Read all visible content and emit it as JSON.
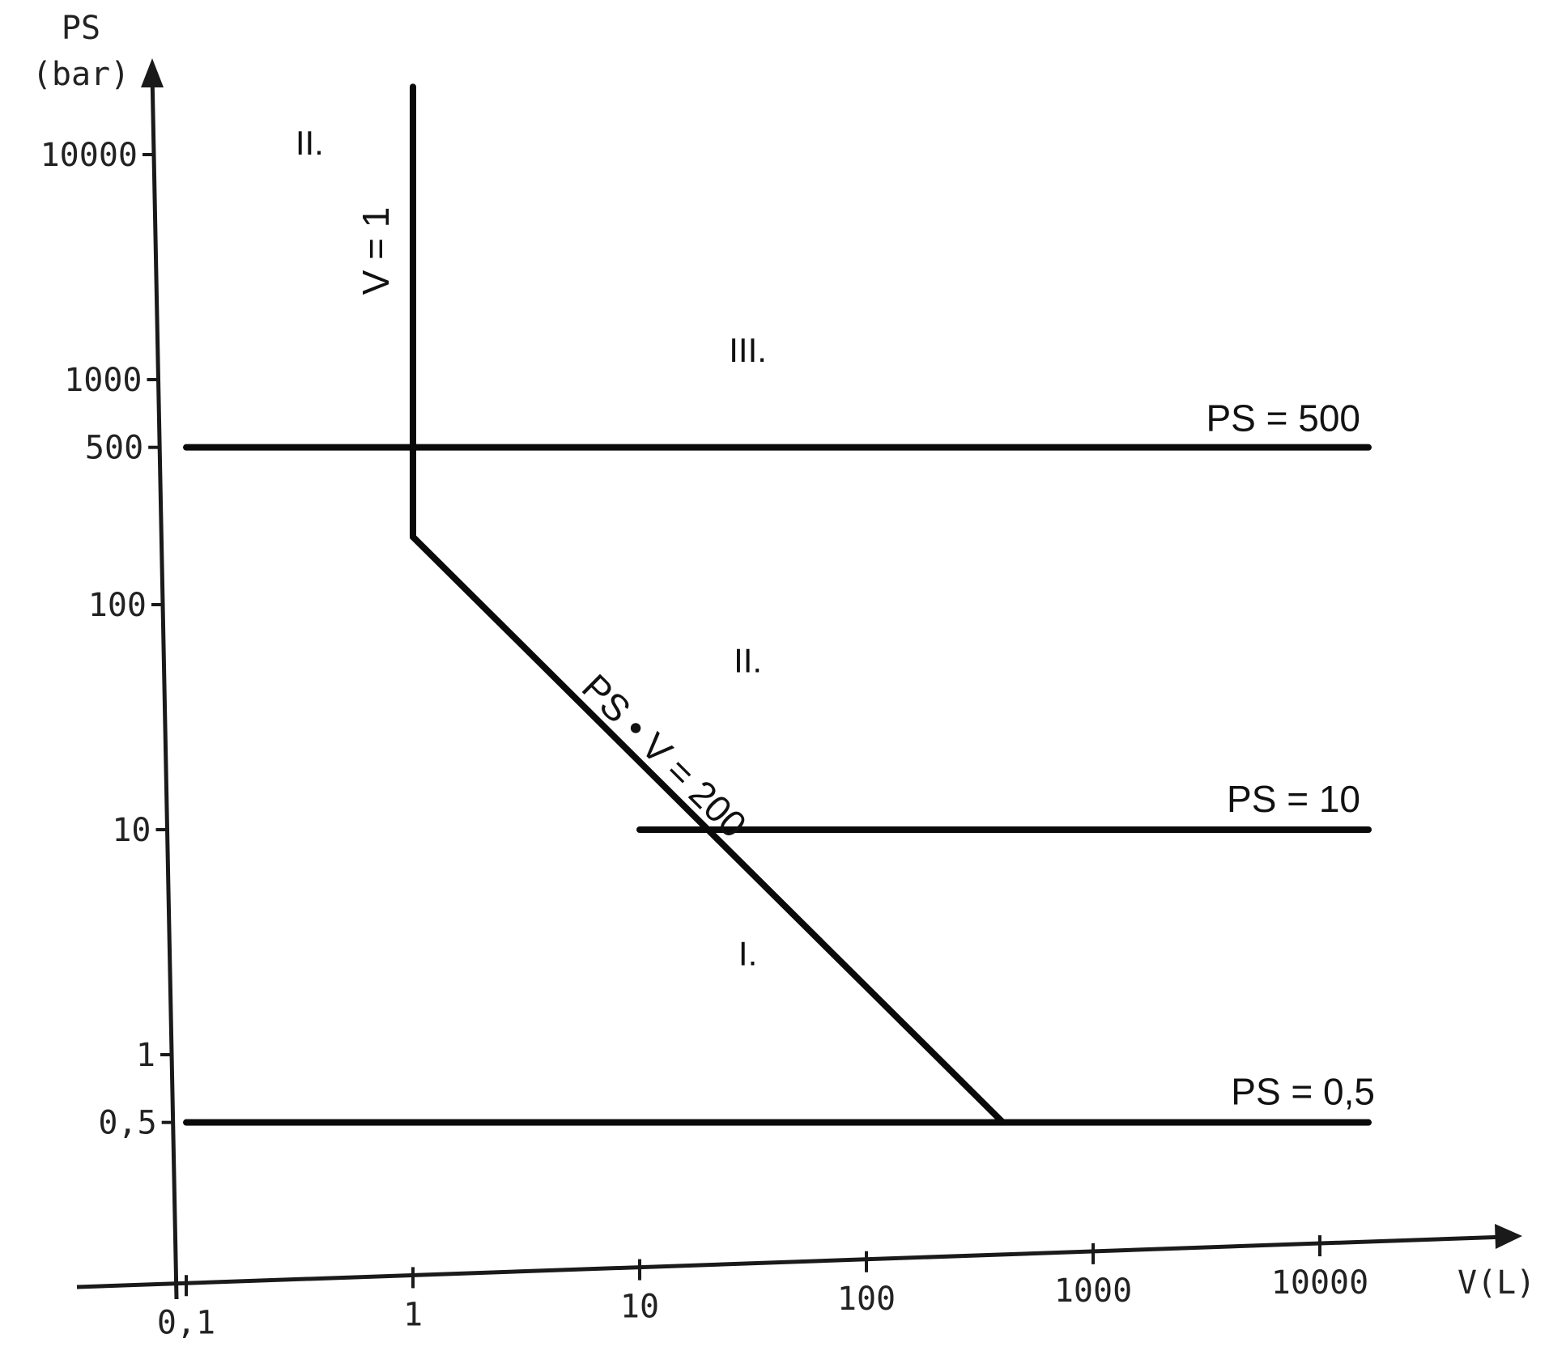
{
  "chart_data": {
    "type": "line",
    "title": "",
    "y_axis": {
      "label_line1": "PS",
      "label_line2": "(bar)",
      "scale": "log",
      "ticks": [
        {
          "value": 0.5,
          "label": "0,5"
        },
        {
          "value": 1,
          "label": "1"
        },
        {
          "value": 10,
          "label": "10"
        },
        {
          "value": 100,
          "label": "100"
        },
        {
          "value": 500,
          "label": "500"
        },
        {
          "value": 1000,
          "label": "1000"
        },
        {
          "value": 10000,
          "label": "10000"
        }
      ]
    },
    "x_axis": {
      "label": "V(L)",
      "scale": "log",
      "ticks": [
        {
          "value": 0.1,
          "label": "0,1"
        },
        {
          "value": 1,
          "label": "1"
        },
        {
          "value": 10,
          "label": "10"
        },
        {
          "value": 100,
          "label": "100"
        },
        {
          "value": 1000,
          "label": "1000"
        },
        {
          "value": 10000,
          "label": "10000"
        }
      ]
    },
    "series": [
      {
        "id": "v1",
        "name": "V = 1",
        "points": [
          [
            1,
            200
          ],
          [
            1,
            20000
          ]
        ]
      },
      {
        "id": "psv200",
        "name": "PS • V = 200",
        "points": [
          [
            1,
            200
          ],
          [
            10,
            20
          ],
          [
            100,
            2
          ],
          [
            400,
            0.5
          ]
        ]
      },
      {
        "id": "ps500",
        "name": "PS = 500",
        "points": [
          [
            0.1,
            500
          ],
          [
            20000,
            500
          ]
        ]
      },
      {
        "id": "ps10",
        "name": "PS = 10",
        "points": [
          [
            10,
            10
          ],
          [
            20000,
            10
          ]
        ]
      },
      {
        "id": "ps05",
        "name": "PS = 0,5",
        "points": [
          [
            0.1,
            0.5
          ],
          [
            20000,
            0.5
          ]
        ]
      }
    ],
    "regions": [
      {
        "id": "r_top_left",
        "label": "II.",
        "v": 0.35,
        "ps": 10000
      },
      {
        "id": "r_iii",
        "label": "III.",
        "v": 30,
        "ps": 1200
      },
      {
        "id": "r_ii",
        "label": "II.",
        "v": 30,
        "ps": 50
      },
      {
        "id": "r_i",
        "label": "I.",
        "v": 30,
        "ps": 2.5
      }
    ],
    "grid": false,
    "legend": "none"
  }
}
